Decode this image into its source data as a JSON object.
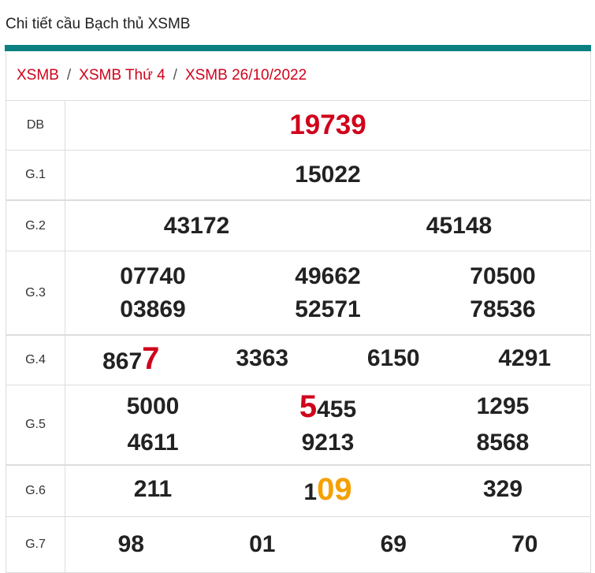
{
  "page_title": "Chi tiết cầu Bạch thủ XSMB",
  "breadcrumb": [
    "XSMB",
    "XSMB Thứ 4",
    "XSMB 26/10/2022"
  ],
  "colors": {
    "accent_bar": "#0a8080",
    "red": "#d0021b",
    "orange": "#f5a000"
  },
  "prizes": [
    {
      "label": "DB",
      "cols": 1,
      "numbers": [
        [
          {
            "t": "19739"
          }
        ]
      ]
    },
    {
      "label": "G.1",
      "cols": 1,
      "numbers": [
        [
          {
            "t": "15022"
          }
        ]
      ]
    },
    {
      "label": "G.2",
      "cols": 2,
      "numbers": [
        [
          {
            "t": "43172"
          }
        ],
        [
          {
            "t": "45148"
          }
        ]
      ]
    },
    {
      "label": "G.3",
      "cols": 3,
      "numbers": [
        [
          {
            "t": "07740"
          }
        ],
        [
          {
            "t": "49662"
          }
        ],
        [
          {
            "t": "70500"
          }
        ],
        [
          {
            "t": "03869"
          }
        ],
        [
          {
            "t": "52571"
          }
        ],
        [
          {
            "t": "78536"
          }
        ]
      ]
    },
    {
      "label": "G.4",
      "cols": 4,
      "numbers": [
        [
          {
            "t": "867"
          },
          {
            "t": "7",
            "c": "red"
          }
        ],
        [
          {
            "t": "3363"
          }
        ],
        [
          {
            "t": "6150"
          }
        ],
        [
          {
            "t": "4291"
          }
        ]
      ]
    },
    {
      "label": "G.5",
      "cols": 3,
      "numbers": [
        [
          {
            "t": "5000"
          }
        ],
        [
          {
            "t": "5",
            "c": "red"
          },
          {
            "t": "455"
          }
        ],
        [
          {
            "t": "1295"
          }
        ],
        [
          {
            "t": "4611"
          }
        ],
        [
          {
            "t": "9213"
          }
        ],
        [
          {
            "t": "8568"
          }
        ]
      ]
    },
    {
      "label": "G.6",
      "cols": 3,
      "numbers": [
        [
          {
            "t": "211"
          }
        ],
        [
          {
            "t": "1"
          },
          {
            "t": "09",
            "c": "orange"
          }
        ],
        [
          {
            "t": "329"
          }
        ]
      ]
    },
    {
      "label": "G.7",
      "cols": 4,
      "numbers": [
        [
          {
            "t": "98"
          }
        ],
        [
          {
            "t": "01"
          }
        ],
        [
          {
            "t": "69"
          }
        ],
        [
          {
            "t": "70"
          }
        ]
      ]
    }
  ]
}
